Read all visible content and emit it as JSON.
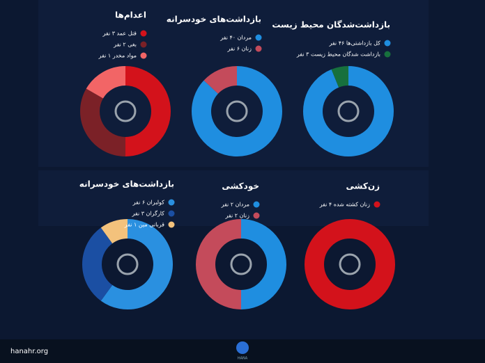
{
  "chart_data": [
    {
      "type": "donut",
      "title": "اعدام‌ها",
      "categories": [
        "قتل عمد ۳ نفر",
        "بغی ۲ نفر",
        "مواد مخدر ۱ نفر"
      ],
      "values": [
        3,
        2,
        1
      ],
      "colors": [
        "#d3121b",
        "#7b2127",
        "#f26566"
      ]
    },
    {
      "type": "donut",
      "title": "بازداشت‌های خودسرانه",
      "categories": [
        "مردان ۴۰ نفر",
        "زنان ۶ نفر"
      ],
      "values": [
        40,
        6
      ],
      "colors": [
        "#1f8ee0",
        "#c44b5b"
      ]
    },
    {
      "type": "donut",
      "title": "بازداشت‌شدگان محیط زیست",
      "categories": [
        "کل بازداشتی‌ها ۴۶ نفر",
        "بازداشت شدگان محیط زیست ۳ نفر"
      ],
      "values": [
        46,
        3
      ],
      "colors": [
        "#1f8ee0",
        "#17703d"
      ]
    },
    {
      "type": "donut",
      "title": "بازداشت‌های خودسرانه",
      "categories": [
        "کولبران ۶ نفر",
        "کارگران ۳ نفر",
        "قربانی مین ۱ نفر"
      ],
      "values": [
        6,
        3,
        1
      ],
      "colors": [
        "#2a90e0",
        "#1b4fa3",
        "#f3c27c"
      ]
    },
    {
      "type": "donut",
      "title": "خودکشی",
      "categories": [
        "مردان ۲ نفر",
        "زنان ۲ نفر"
      ],
      "values": [
        2,
        2
      ],
      "colors": [
        "#1f8ee0",
        "#c44b5b"
      ]
    },
    {
      "type": "donut",
      "title": "زن‌کشی",
      "categories": [
        "زنان کشته شده ۴ نفر"
      ],
      "values": [
        4
      ],
      "colors": [
        "#d3121b"
      ]
    }
  ],
  "footer": {
    "site": "hanahr.org",
    "logo": "HANA"
  }
}
